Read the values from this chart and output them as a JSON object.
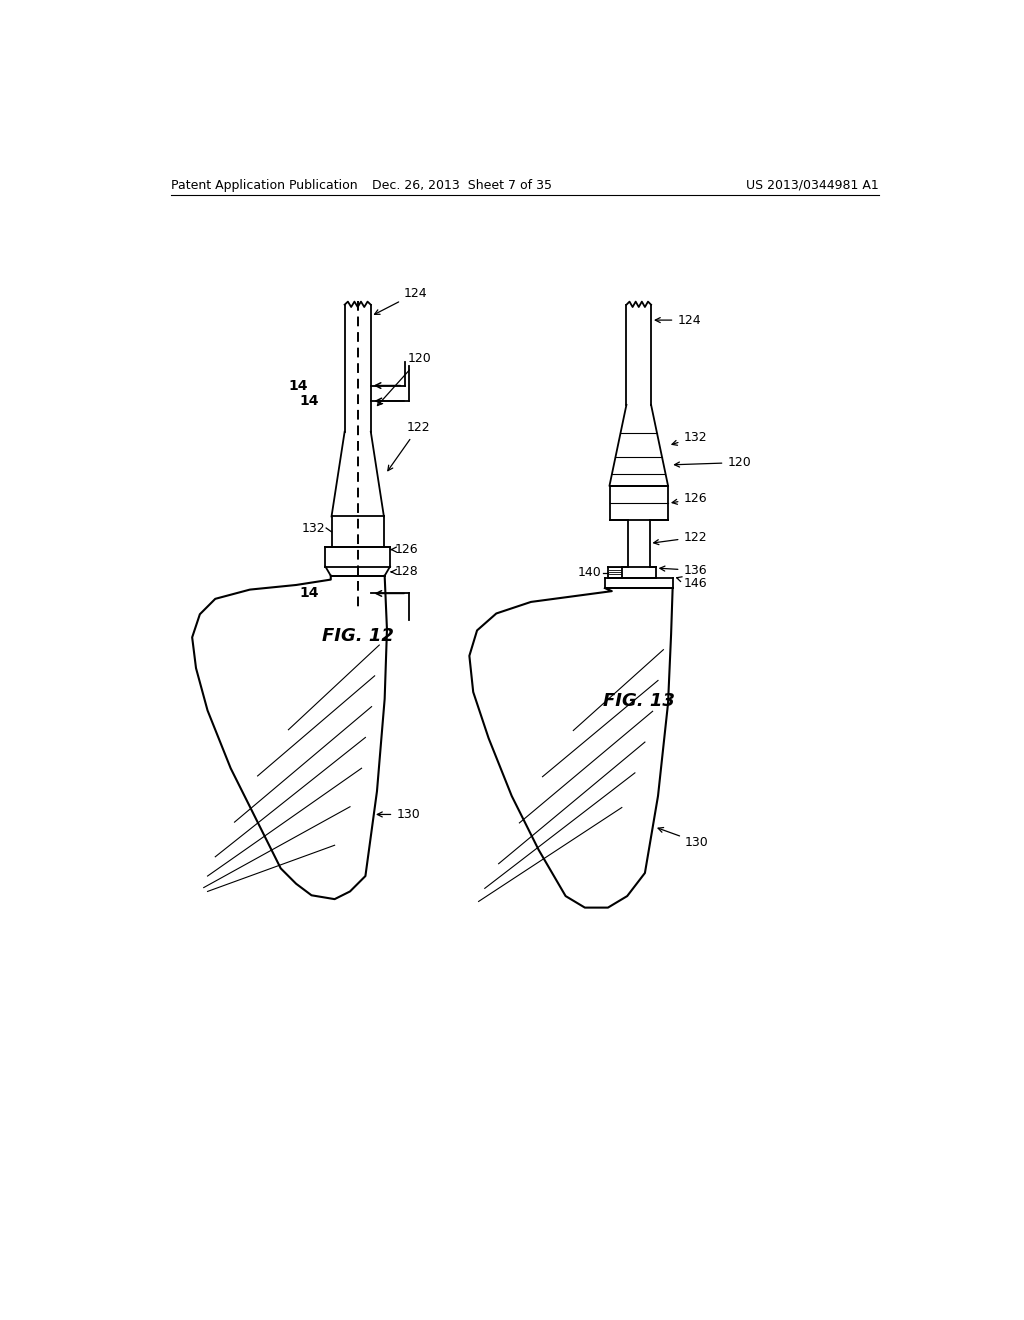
{
  "bg_color": "#ffffff",
  "header_left": "Patent Application Publication",
  "header_mid": "Dec. 26, 2013  Sheet 7 of 35",
  "header_right": "US 2013/0344981 A1",
  "fig12_label": "FIG. 12",
  "fig13_label": "FIG. 13",
  "header_fontsize": 9,
  "fig_label_fontsize": 13
}
